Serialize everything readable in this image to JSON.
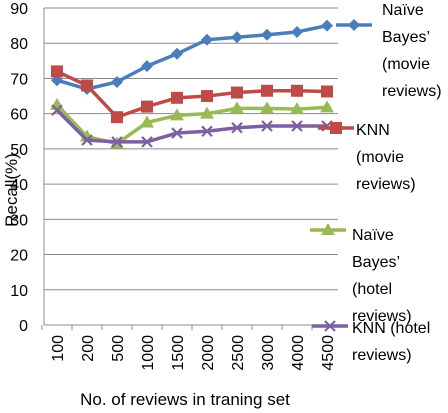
{
  "chart_data": {
    "type": "line",
    "title": "",
    "xlabel": "No. of reviews in traning set",
    "ylabel": "Recall(%)",
    "ylim": [
      0,
      90
    ],
    "yticks": [
      0,
      10,
      20,
      30,
      40,
      50,
      60,
      70,
      80,
      90
    ],
    "grid": "horizontal",
    "legend_position": "right",
    "categories": [
      "100",
      "200",
      "500",
      "1000",
      "1500",
      "2000",
      "2500",
      "3000",
      "4000",
      "4500"
    ],
    "series": [
      {
        "name": "Naïve Bayes’ (movie reviews)",
        "legend_lines": [
          "Naïve",
          "Bayes’",
          "(movie",
          "reviews)"
        ],
        "color": "#4a7ebb",
        "marker": "diamond",
        "values": [
          69.5,
          67,
          69,
          73.5,
          77,
          81,
          81.7,
          82.4,
          83.2,
          85
        ]
      },
      {
        "name": "KNN (movie reviews)",
        "legend_lines": [
          "KNN",
          "(movie",
          "reviews)"
        ],
        "color": "#be4b48",
        "marker": "square",
        "values": [
          72,
          68,
          59,
          62,
          64.5,
          65,
          66,
          66.5,
          66.5,
          66.3
        ]
      },
      {
        "name": "Naïve Bayes’ (hotel reviews)",
        "legend_lines": [
          "Naïve",
          "Bayes’",
          "(hotel",
          "reviews)"
        ],
        "color": "#98b954",
        "marker": "triangle",
        "values": [
          62.5,
          53.5,
          51.5,
          57.5,
          59.5,
          60,
          61.5,
          61.5,
          61.3,
          61.8
        ]
      },
      {
        "name": "KNN (hotel reviews)",
        "legend_lines": [
          "KNN (hotel",
          "reviews)"
        ],
        "color": "#7d60a0",
        "marker": "x",
        "values": [
          61,
          52.5,
          52,
          52,
          54.5,
          55,
          56,
          56.5,
          56.5,
          56.5
        ]
      }
    ]
  }
}
